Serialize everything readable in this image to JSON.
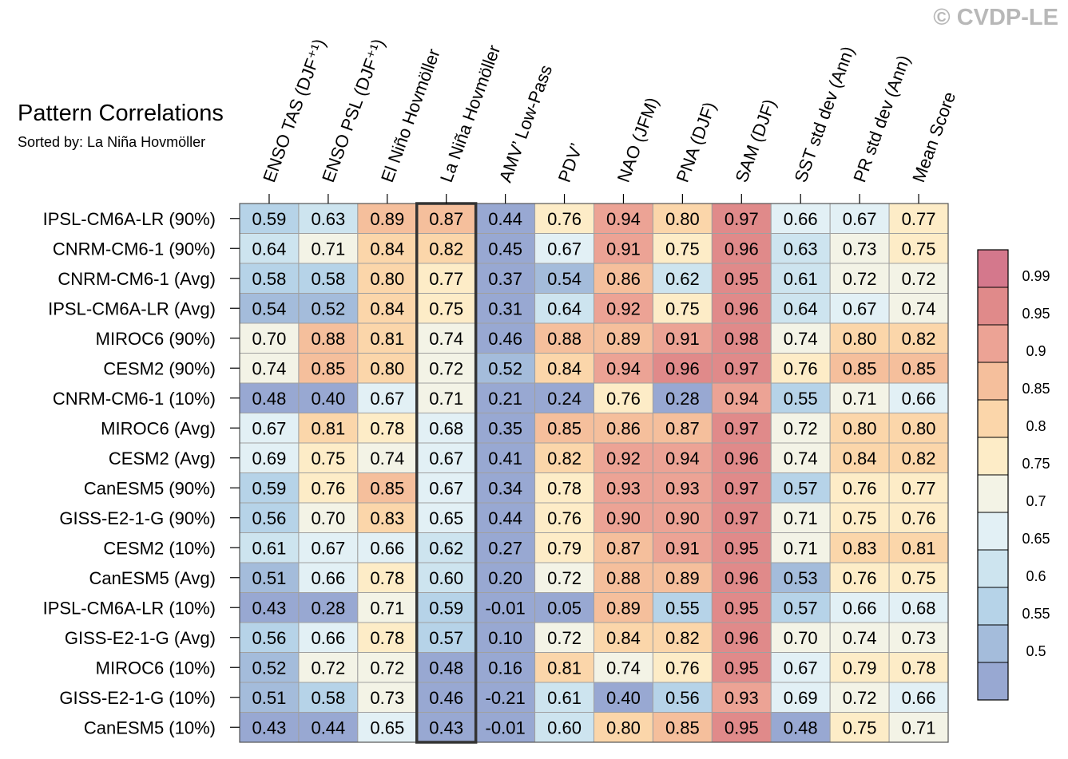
{
  "title": "Pattern Correlations",
  "subtitle": "Sorted by: La Niña Hovmöller",
  "watermark": "© CVDP-LE",
  "chart_data": {
    "type": "heatmap",
    "columns": [
      "ENSO TAS (DJF⁺¹)",
      "ENSO PSL (DJF⁺¹)",
      "El Niño Hovmöller",
      "La Niña Hovmöller",
      "AMV’ Low-Pass",
      "PDV’",
      "NAO (JFM)",
      "PNA (DJF)",
      "SAM (DJF)",
      "SST std dev (Ann)",
      "PR std dev (Ann)",
      "Mean Score"
    ],
    "highlighted_column": "La Niña Hovmöller",
    "rows": [
      "IPSL-CM6A-LR (90%)",
      "CNRM-CM6-1 (90%)",
      "CNRM-CM6-1 (Avg)",
      "IPSL-CM6A-LR (Avg)",
      "MIROC6 (90%)",
      "CESM2 (90%)",
      "CNRM-CM6-1 (10%)",
      "MIROC6 (Avg)",
      "CESM2 (Avg)",
      "CanESM5 (90%)",
      "GISS-E2-1-G (90%)",
      "CESM2 (10%)",
      "CanESM5 (Avg)",
      "IPSL-CM6A-LR (10%)",
      "GISS-E2-1-G (Avg)",
      "MIROC6 (10%)",
      "GISS-E2-1-G (10%)",
      "CanESM5 (10%)"
    ],
    "values": [
      [
        "0.59",
        "0.63",
        "0.89",
        "0.87",
        "0.44",
        "0.76",
        "0.94",
        "0.80",
        "0.97",
        "0.66",
        "0.67",
        "0.77"
      ],
      [
        "0.64",
        "0.71",
        "0.84",
        "0.82",
        "0.45",
        "0.67",
        "0.91",
        "0.75",
        "0.96",
        "0.63",
        "0.73",
        "0.75"
      ],
      [
        "0.58",
        "0.58",
        "0.80",
        "0.77",
        "0.37",
        "0.54",
        "0.86",
        "0.62",
        "0.95",
        "0.61",
        "0.72",
        "0.72"
      ],
      [
        "0.54",
        "0.52",
        "0.84",
        "0.75",
        "0.31",
        "0.64",
        "0.92",
        "0.75",
        "0.96",
        "0.64",
        "0.67",
        "0.74"
      ],
      [
        "0.70",
        "0.88",
        "0.81",
        "0.74",
        "0.46",
        "0.88",
        "0.89",
        "0.91",
        "0.98",
        "0.74",
        "0.80",
        "0.82"
      ],
      [
        "0.74",
        "0.85",
        "0.80",
        "0.72",
        "0.52",
        "0.84",
        "0.94",
        "0.96",
        "0.97",
        "0.76",
        "0.85",
        "0.85"
      ],
      [
        "0.48",
        "0.40",
        "0.67",
        "0.71",
        "0.21",
        "0.24",
        "0.76",
        "0.28",
        "0.94",
        "0.55",
        "0.71",
        "0.66"
      ],
      [
        "0.67",
        "0.81",
        "0.78",
        "0.68",
        "0.35",
        "0.85",
        "0.86",
        "0.87",
        "0.97",
        "0.72",
        "0.80",
        "0.80"
      ],
      [
        "0.69",
        "0.75",
        "0.74",
        "0.67",
        "0.41",
        "0.82",
        "0.92",
        "0.94",
        "0.96",
        "0.74",
        "0.84",
        "0.82"
      ],
      [
        "0.59",
        "0.76",
        "0.85",
        "0.67",
        "0.34",
        "0.78",
        "0.93",
        "0.93",
        "0.97",
        "0.57",
        "0.76",
        "0.77"
      ],
      [
        "0.56",
        "0.70",
        "0.83",
        "0.65",
        "0.44",
        "0.76",
        "0.90",
        "0.90",
        "0.97",
        "0.71",
        "0.75",
        "0.76"
      ],
      [
        "0.61",
        "0.67",
        "0.66",
        "0.62",
        "0.27",
        "0.79",
        "0.87",
        "0.91",
        "0.95",
        "0.71",
        "0.83",
        "0.81"
      ],
      [
        "0.51",
        "0.66",
        "0.78",
        "0.60",
        "0.20",
        "0.72",
        "0.88",
        "0.89",
        "0.96",
        "0.53",
        "0.76",
        "0.75"
      ],
      [
        "0.43",
        "0.28",
        "0.71",
        "0.59",
        "-0.01",
        "0.05",
        "0.89",
        "0.55",
        "0.95",
        "0.57",
        "0.66",
        "0.68"
      ],
      [
        "0.56",
        "0.66",
        "0.78",
        "0.57",
        "0.10",
        "0.72",
        "0.84",
        "0.82",
        "0.96",
        "0.70",
        "0.74",
        "0.73"
      ],
      [
        "0.52",
        "0.72",
        "0.72",
        "0.48",
        "0.16",
        "0.81",
        "0.74",
        "0.76",
        "0.95",
        "0.67",
        "0.79",
        "0.78"
      ],
      [
        "0.51",
        "0.58",
        "0.73",
        "0.46",
        "-0.21",
        "0.61",
        "0.40",
        "0.56",
        "0.93",
        "0.69",
        "0.72",
        "0.66"
      ],
      [
        "0.43",
        "0.44",
        "0.65",
        "0.43",
        "-0.01",
        "0.60",
        "0.80",
        "0.85",
        "0.95",
        "0.48",
        "0.75",
        "0.71"
      ]
    ],
    "colorbar": {
      "labels": [
        "0.99",
        "0.95",
        "0.9",
        "0.85",
        "0.8",
        "0.75",
        "0.7",
        "0.65",
        "0.6",
        "0.55",
        "0.5"
      ],
      "bins": [
        {
          "min": 0.99,
          "color": "#d4788c"
        },
        {
          "min": 0.95,
          "color": "#e08a8a"
        },
        {
          "min": 0.9,
          "color": "#eca395"
        },
        {
          "min": 0.85,
          "color": "#f5bf9c"
        },
        {
          "min": 0.8,
          "color": "#fbd6aa"
        },
        {
          "min": 0.75,
          "color": "#fdecc7"
        },
        {
          "min": 0.7,
          "color": "#f3f3e6"
        },
        {
          "min": 0.65,
          "color": "#e2f0f5"
        },
        {
          "min": 0.6,
          "color": "#cde4ef"
        },
        {
          "min": 0.55,
          "color": "#b6d3e8"
        },
        {
          "min": 0.5,
          "color": "#a4bcdb"
        },
        {
          "min": -1.0,
          "color": "#98a8d2"
        }
      ]
    }
  }
}
